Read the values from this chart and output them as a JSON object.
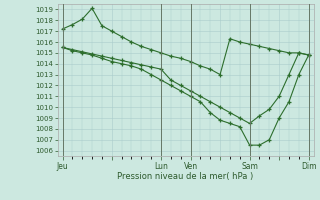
{
  "background_color": "#cce8e0",
  "plot_bg_color": "#cce8e0",
  "grid_color": "#aacccc",
  "line_color": "#2d6e2d",
  "marker_color": "#2d6e2d",
  "xlabel": "Pression niveau de la mer( hPa )",
  "ylim": [
    1005.5,
    1019.5
  ],
  "yticks": [
    1006,
    1007,
    1008,
    1009,
    1010,
    1011,
    1012,
    1013,
    1014,
    1015,
    1016,
    1017,
    1018,
    1019
  ],
  "xtick_labels": [
    "Jeu",
    "",
    "Lun",
    "Ven",
    "",
    "Sam",
    "",
    "Dim"
  ],
  "xtick_positions": [
    0,
    5,
    10,
    13,
    16,
    19,
    22,
    25
  ],
  "vlines": [
    0,
    10,
    13,
    19,
    25
  ],
  "series": [
    [
      1017.2,
      1017.6,
      1018.1,
      1019.1,
      1017.5,
      1017.0,
      1016.5,
      1016.0,
      1015.6,
      1015.3,
      1015.0,
      1014.7,
      1014.5,
      1014.2,
      1013.8,
      1013.5,
      1013.0,
      1016.3,
      1016.0,
      1015.8,
      1015.6,
      1015.4,
      1015.2,
      1015.0,
      1015.0,
      1014.8
    ],
    [
      1015.5,
      1015.3,
      1015.1,
      1014.9,
      1014.7,
      1014.5,
      1014.3,
      1014.1,
      1013.9,
      1013.7,
      1013.5,
      1012.5,
      1012.0,
      1011.5,
      1011.0,
      1010.5,
      1010.0,
      1009.5,
      1009.0,
      1008.5,
      1009.2,
      1009.8,
      1011.0,
      1013.0,
      1015.0,
      1014.8
    ],
    [
      1015.5,
      1015.2,
      1015.0,
      1014.8,
      1014.5,
      1014.2,
      1014.0,
      1013.8,
      1013.5,
      1013.0,
      1012.5,
      1012.0,
      1011.5,
      1011.0,
      1010.5,
      1009.5,
      1008.8,
      1008.5,
      1008.2,
      1006.5,
      1006.5,
      1007.0,
      1009.0,
      1010.5,
      1013.0,
      1014.8
    ]
  ]
}
